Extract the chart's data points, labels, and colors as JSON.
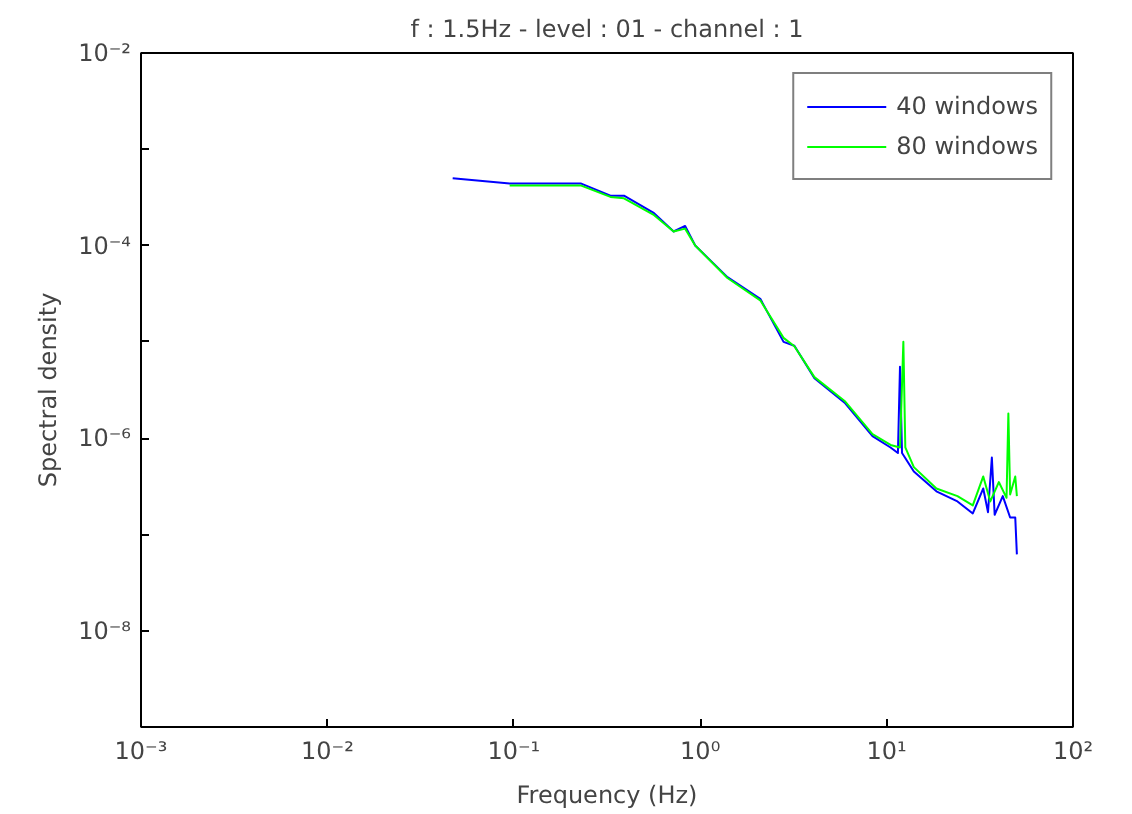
{
  "chart_data": {
    "type": "line",
    "title": "f : 1.5Hz - level : 01 - channel : 1",
    "xlabel": "Frequency (Hz)",
    "ylabel": "Spectral density",
    "log": "xy",
    "grid": false,
    "legend": "top right",
    "line_style": "solid",
    "marker": "none",
    "xlim": [
      0.001,
      100
    ],
    "ylim": [
      1e-09,
      0.01
    ],
    "xticks": [
      {
        "value": 0.001,
        "label": "10⁻³"
      },
      {
        "value": 0.01,
        "label": "10⁻²"
      },
      {
        "value": 0.1,
        "label": "10⁻¹"
      },
      {
        "value": 1,
        "label": "10⁰"
      },
      {
        "value": 10,
        "label": "10¹"
      },
      {
        "value": 100,
        "label": "10²"
      }
    ],
    "yticks": [
      {
        "value": 1e-09,
        "label": null
      },
      {
        "value": 1e-08,
        "label": "10⁻⁸"
      },
      {
        "value": 1e-07,
        "label": null
      },
      {
        "value": 1e-06,
        "label": "10⁻⁶"
      },
      {
        "value": 1e-05,
        "label": null
      },
      {
        "value": 0.0001,
        "label": "10⁻⁴"
      },
      {
        "value": 0.001,
        "label": null
      },
      {
        "value": 0.01,
        "label": "10⁻²"
      }
    ],
    "series": [
      {
        "name": "40 windows",
        "color": "#0000ff",
        "x": [
          0.047,
          0.095,
          0.23,
          0.33,
          0.39,
          0.56,
          0.72,
          0.83,
          0.94,
          1.4,
          2.1,
          2.8,
          3.2,
          4.1,
          6.0,
          8.4,
          10.5,
          11.5,
          11.8,
          12.1,
          14,
          18.5,
          24,
          29,
          33,
          35,
          36.7,
          38,
          42,
          46,
          49,
          50
        ],
        "values": [
          0.0005,
          0.00044,
          0.00044,
          0.00033,
          0.00033,
          0.00022,
          0.00014,
          0.00016,
          0.0001,
          4.7e-05,
          2.8e-05,
          1e-05,
          9.1e-06,
          4.2e-06,
          2.3e-06,
          1.05e-06,
          8e-07,
          7e-07,
          5.5e-06,
          7e-07,
          4.5e-07,
          2.8e-07,
          2.2e-07,
          1.65e-07,
          3e-07,
          1.7e-07,
          6.3e-07,
          1.6e-07,
          2.5e-07,
          1.5e-07,
          1.5e-07,
          6.2e-08
        ]
      },
      {
        "name": "80 windows",
        "color": "#00ff00",
        "x": [
          0.095,
          0.23,
          0.33,
          0.39,
          0.56,
          0.72,
          0.83,
          0.94,
          1.4,
          2.1,
          2.8,
          3.2,
          4.1,
          6.0,
          8.4,
          10.5,
          11.8,
          12.3,
          12.6,
          14,
          18.5,
          24,
          29,
          33,
          36,
          40,
          44,
          45,
          46,
          49,
          50
        ],
        "values": [
          0.00042,
          0.00042,
          0.00032,
          0.00031,
          0.00021,
          0.00014,
          0.00015,
          0.0001,
          4.6e-05,
          2.7e-05,
          1.1e-05,
          9e-06,
          4.3e-06,
          2.4e-06,
          1.1e-06,
          8.5e-07,
          8e-07,
          1e-05,
          8e-07,
          5e-07,
          3e-07,
          2.5e-07,
          2e-07,
          4e-07,
          2.2e-07,
          3.5e-07,
          2.4e-07,
          1.8e-06,
          2.6e-07,
          4e-07,
          2.5e-07
        ]
      }
    ]
  }
}
